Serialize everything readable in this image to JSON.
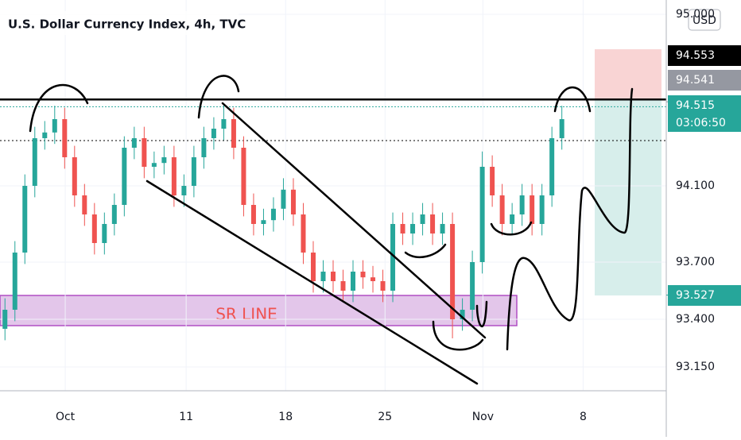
{
  "chart_data": {
    "type": "candlestick",
    "title": "U.S. Dollar Currency Index, 4h, TVC",
    "currency": "USD",
    "annotation": "SR LINE",
    "up_color": "#26a69a",
    "down_color": "#ef5350",
    "xlim": [
      0,
      67
    ],
    "ylim": [
      93.025,
      95.075
    ],
    "xticks": [
      {
        "value": 6.56,
        "label": "Oct"
      },
      {
        "value": 18.72,
        "label": "11"
      },
      {
        "value": 28.72,
        "label": "18"
      },
      {
        "value": 38.72,
        "label": "25"
      },
      {
        "value": 48.56,
        "label": "Nov"
      },
      {
        "value": 58.64,
        "label": "8"
      }
    ],
    "yticks": [
      {
        "value": 93.15,
        "label": "93.150"
      },
      {
        "value": 93.4,
        "label": "93.400"
      },
      {
        "value": 93.7,
        "label": "93.700"
      },
      {
        "value": 94.1,
        "label": "94.100"
      },
      {
        "value": 95.0,
        "label": "95.000"
      }
    ],
    "price_tags": [
      {
        "value": 94.553,
        "label": "94.553",
        "color": "#000000"
      },
      {
        "value": 94.541,
        "label": "94.541",
        "color": "#9598a1"
      },
      {
        "value": 94.515,
        "label": "94.515",
        "sub": "03:06:50",
        "color": "#26a69a"
      },
      {
        "value": 93.527,
        "label": "93.527",
        "color": "#26a69a"
      }
    ],
    "x": [
      0.5,
      1.5,
      2.5,
      3.5,
      4.5,
      5.5,
      6.5,
      7.5,
      8.5,
      9.5,
      10.5,
      11.5,
      12.5,
      13.5,
      14.5,
      15.5,
      16.5,
      17.5,
      18.5,
      19.5,
      20.5,
      21.5,
      22.5,
      23.5,
      24.5,
      25.5,
      26.5,
      27.5,
      28.5,
      29.5,
      30.5,
      31.5,
      32.5,
      33.5,
      34.5,
      35.5,
      36.5,
      37.5,
      38.5,
      39.5,
      40.5,
      41.5,
      42.5,
      43.5,
      44.5,
      45.5,
      46.5,
      47.5,
      48.5,
      49.5,
      50.5,
      51.5,
      52.5,
      53.5,
      54.5,
      55.5,
      56.5
    ],
    "open": [
      93.35,
      93.45,
      93.75,
      94.1,
      94.35,
      94.38,
      94.45,
      94.25,
      94.05,
      93.95,
      93.8,
      93.9,
      94.0,
      94.3,
      94.35,
      94.2,
      94.22,
      94.25,
      94.05,
      94.1,
      94.25,
      94.35,
      94.4,
      94.45,
      94.3,
      94.0,
      93.9,
      93.92,
      93.98,
      94.08,
      93.95,
      93.75,
      93.6,
      93.65,
      93.6,
      93.55,
      93.65,
      93.62,
      93.6,
      93.55,
      93.9,
      93.85,
      93.9,
      93.95,
      93.85,
      93.9,
      93.4,
      93.45,
      93.7,
      94.2,
      94.05,
      93.9,
      93.95,
      94.05,
      93.9,
      94.05,
      94.35
    ],
    "high": [
      93.51,
      93.81,
      94.16,
      94.41,
      94.44,
      94.52,
      94.51,
      94.31,
      94.11,
      94.01,
      93.96,
      94.06,
      94.36,
      94.41,
      94.41,
      94.28,
      94.31,
      94.31,
      94.16,
      94.31,
      94.41,
      94.46,
      94.53,
      94.51,
      94.36,
      94.06,
      93.98,
      94.04,
      94.14,
      94.14,
      94.01,
      93.81,
      93.71,
      93.71,
      93.66,
      93.71,
      93.71,
      93.68,
      93.66,
      93.96,
      93.96,
      93.96,
      94.01,
      94.01,
      93.96,
      93.96,
      93.51,
      93.76,
      94.28,
      94.26,
      94.11,
      94.01,
      94.11,
      94.11,
      94.11,
      94.41,
      94.52
    ],
    "low": [
      93.29,
      93.39,
      93.69,
      94.04,
      94.29,
      94.32,
      94.19,
      93.99,
      93.89,
      93.74,
      93.74,
      93.84,
      93.94,
      94.24,
      94.14,
      94.14,
      94.16,
      93.99,
      93.99,
      94.04,
      94.19,
      94.29,
      94.34,
      94.24,
      93.94,
      93.84,
      93.84,
      93.86,
      93.92,
      93.89,
      93.69,
      93.54,
      93.54,
      93.54,
      93.49,
      93.49,
      93.56,
      93.54,
      93.49,
      93.49,
      93.79,
      93.79,
      93.84,
      93.79,
      93.79,
      93.3,
      93.34,
      93.39,
      93.64,
      93.99,
      93.84,
      93.84,
      93.89,
      93.84,
      93.84,
      93.99,
      94.29
    ],
    "close": [
      93.45,
      93.75,
      94.1,
      94.35,
      94.38,
      94.45,
      94.25,
      94.05,
      93.95,
      93.8,
      93.9,
      94.0,
      94.3,
      94.35,
      94.2,
      94.22,
      94.25,
      94.05,
      94.1,
      94.25,
      94.35,
      94.4,
      94.45,
      94.3,
      94.0,
      93.9,
      93.92,
      93.98,
      94.08,
      93.95,
      93.75,
      93.6,
      93.65,
      93.6,
      93.55,
      93.65,
      93.62,
      93.6,
      93.55,
      93.9,
      93.85,
      93.9,
      93.95,
      93.85,
      93.9,
      93.4,
      93.45,
      93.7,
      94.2,
      94.05,
      93.9,
      93.95,
      94.05,
      93.9,
      94.05,
      94.35,
      94.45
    ]
  }
}
